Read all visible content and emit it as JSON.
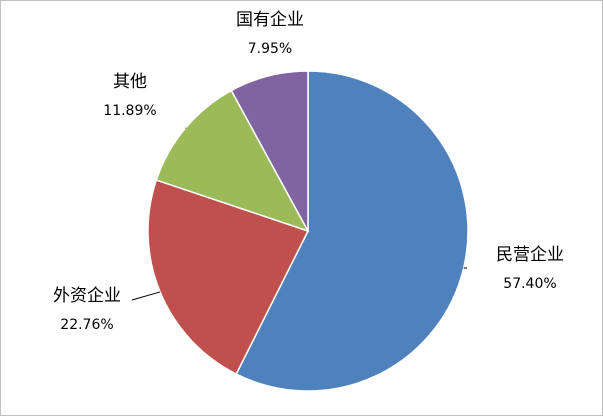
{
  "chart_data": {
    "type": "pie",
    "categories": [
      "民营企业",
      "外资企业",
      "其他",
      "国有企业"
    ],
    "values": [
      57.4,
      22.76,
      11.89,
      7.95
    ],
    "value_labels": [
      "57.40%",
      "22.76%",
      "11.89%",
      "7.95%"
    ],
    "colors": [
      "#4f81bd",
      "#c0504d",
      "#9bbb59",
      "#8064a2"
    ]
  }
}
